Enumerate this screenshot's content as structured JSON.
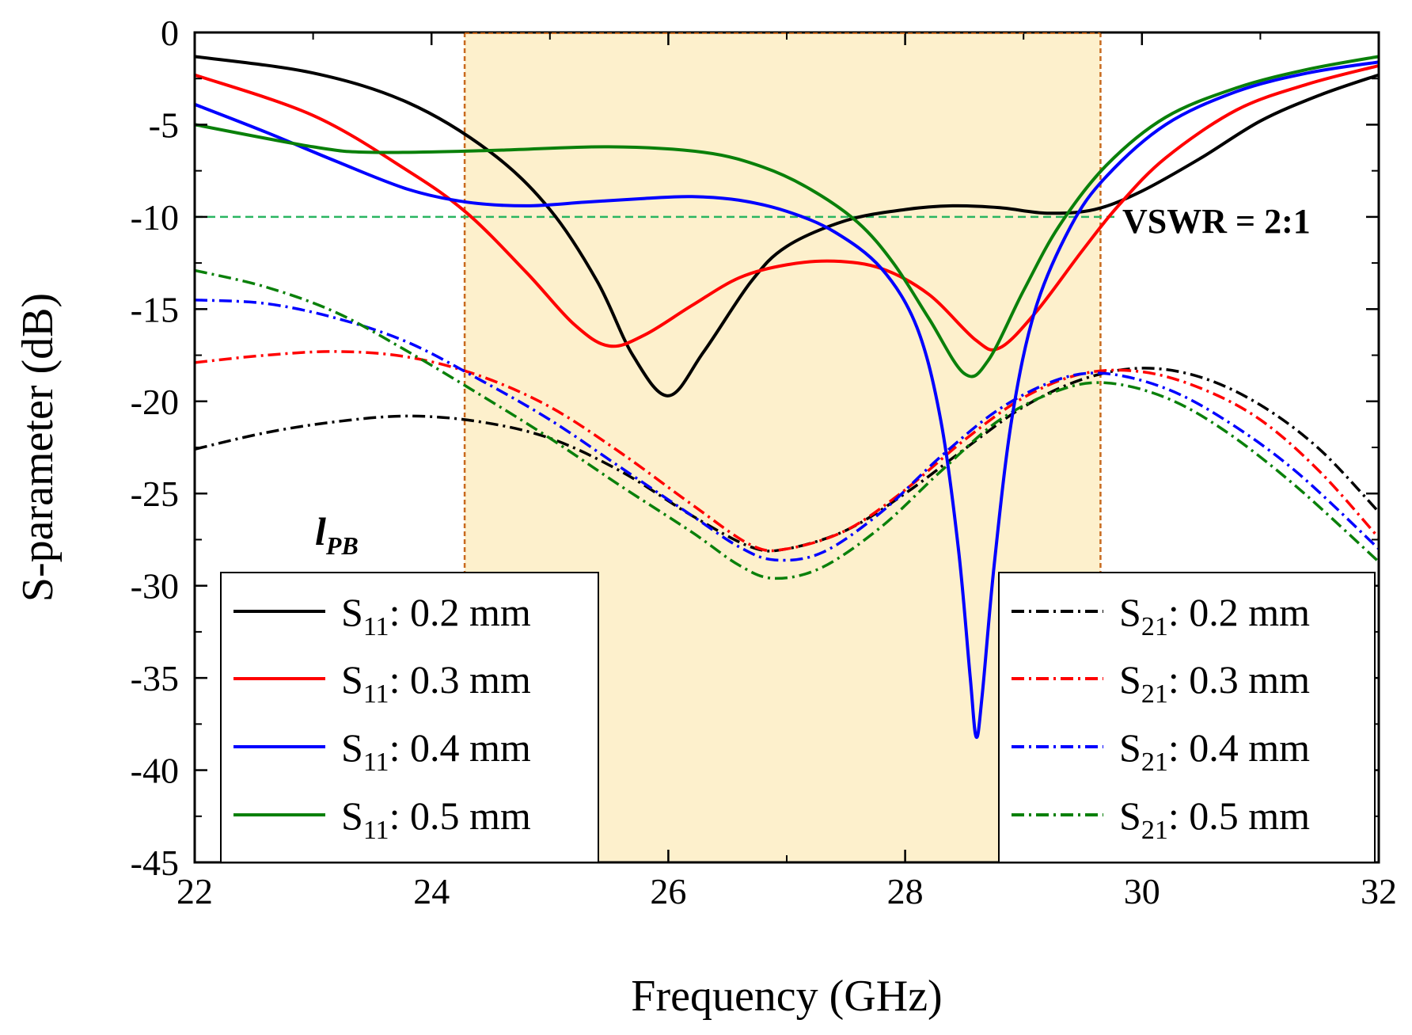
{
  "chart_data": {
    "type": "line",
    "xlabel": "Frequency (GHz)",
    "ylabel": "S-parameter (dB)",
    "xlim": [
      22,
      32
    ],
    "ylim": [
      -45,
      0
    ],
    "xticks": [
      22,
      24,
      26,
      28,
      30,
      32
    ],
    "yticks": [
      0,
      -5,
      -10,
      -15,
      -20,
      -25,
      -30,
      -35,
      -40,
      -45
    ],
    "xtick_labels": [
      "22",
      "24",
      "26",
      "28",
      "30",
      "32"
    ],
    "ytick_labels": [
      "0",
      "-5",
      "-10",
      "-15",
      "-20",
      "-25",
      "-30",
      "-35",
      "-40",
      "-45"
    ],
    "band": {
      "x_start": 24.28,
      "x_end": 29.65,
      "fill": "#fdf0cc",
      "edge": "#c8691e"
    },
    "reference_line": {
      "y": -10,
      "color": "#2ab561",
      "label": "VSWR = 2:1"
    },
    "parameter_label": {
      "main": "l",
      "sub": "PB"
    },
    "series": [
      {
        "name": "S11: 0.2 mm",
        "param": "S",
        "sub": "11",
        "suffix": ": 0.2 mm",
        "color": "#000000",
        "style": "solid",
        "points": [
          [
            22,
            -1.3
          ],
          [
            23,
            -2.2
          ],
          [
            23.8,
            -3.8
          ],
          [
            24.5,
            -6.5
          ],
          [
            25,
            -9.6
          ],
          [
            25.4,
            -13.5
          ],
          [
            25.7,
            -17.5
          ],
          [
            26,
            -19.7
          ],
          [
            26.3,
            -17.3
          ],
          [
            26.7,
            -13.5
          ],
          [
            27,
            -11.6
          ],
          [
            27.5,
            -10.2
          ],
          [
            28,
            -9.6
          ],
          [
            28.4,
            -9.4
          ],
          [
            28.8,
            -9.5
          ],
          [
            29.2,
            -9.8
          ],
          [
            29.6,
            -9.6
          ],
          [
            30,
            -8.6
          ],
          [
            30.5,
            -6.8
          ],
          [
            31,
            -4.8
          ],
          [
            31.5,
            -3.4
          ],
          [
            32,
            -2.3
          ]
        ]
      },
      {
        "name": "S11: 0.3 mm",
        "param": "S",
        "sub": "11",
        "suffix": ": 0.3 mm",
        "color": "#ff0000",
        "style": "solid",
        "points": [
          [
            22,
            -2.3
          ],
          [
            23,
            -4.5
          ],
          [
            23.8,
            -7.5
          ],
          [
            24.3,
            -9.8
          ],
          [
            24.8,
            -13
          ],
          [
            25.2,
            -15.8
          ],
          [
            25.5,
            -17
          ],
          [
            25.8,
            -16.4
          ],
          [
            26.2,
            -14.8
          ],
          [
            26.6,
            -13.3
          ],
          [
            27,
            -12.6
          ],
          [
            27.4,
            -12.4
          ],
          [
            27.8,
            -12.8
          ],
          [
            28.2,
            -14.2
          ],
          [
            28.6,
            -16.7
          ],
          [
            28.8,
            -17.1
          ],
          [
            29.1,
            -15.2
          ],
          [
            29.5,
            -11.8
          ],
          [
            29.8,
            -9.4
          ],
          [
            30.2,
            -6.8
          ],
          [
            30.8,
            -4.2
          ],
          [
            31.4,
            -2.8
          ],
          [
            32,
            -1.8
          ]
        ]
      },
      {
        "name": "S11: 0.4 mm",
        "param": "S",
        "sub": "11",
        "suffix": ": 0.4 mm",
        "color": "#0000ff",
        "style": "solid",
        "points": [
          [
            22,
            -3.9
          ],
          [
            22.6,
            -5.4
          ],
          [
            23.2,
            -7
          ],
          [
            23.8,
            -8.5
          ],
          [
            24.3,
            -9.2
          ],
          [
            24.8,
            -9.4
          ],
          [
            25.3,
            -9.2
          ],
          [
            25.8,
            -9
          ],
          [
            26.2,
            -8.9
          ],
          [
            26.6,
            -9.1
          ],
          [
            27,
            -9.7
          ],
          [
            27.4,
            -10.8
          ],
          [
            27.8,
            -12.8
          ],
          [
            28.1,
            -16
          ],
          [
            28.3,
            -21
          ],
          [
            28.45,
            -28
          ],
          [
            28.55,
            -35
          ],
          [
            28.6,
            -38.2
          ],
          [
            28.65,
            -36
          ],
          [
            28.75,
            -29
          ],
          [
            28.9,
            -21
          ],
          [
            29.1,
            -15
          ],
          [
            29.4,
            -10.5
          ],
          [
            29.7,
            -7.8
          ],
          [
            30.2,
            -5
          ],
          [
            30.8,
            -3.2
          ],
          [
            31.4,
            -2.2
          ],
          [
            32,
            -1.6
          ]
        ]
      },
      {
        "name": "S11: 0.5 mm",
        "param": "S",
        "sub": "11",
        "suffix": ": 0.5 mm",
        "color": "#0a800a",
        "style": "solid",
        "points": [
          [
            22,
            -5
          ],
          [
            23,
            -6.2
          ],
          [
            23.5,
            -6.5
          ],
          [
            24.5,
            -6.4
          ],
          [
            25.5,
            -6.2
          ],
          [
            26.3,
            -6.5
          ],
          [
            26.8,
            -7.3
          ],
          [
            27.2,
            -8.5
          ],
          [
            27.6,
            -10.3
          ],
          [
            27.9,
            -12.5
          ],
          [
            28.2,
            -15.5
          ],
          [
            28.5,
            -18.5
          ],
          [
            28.7,
            -17.8
          ],
          [
            29,
            -14
          ],
          [
            29.3,
            -10.5
          ],
          [
            29.7,
            -7.2
          ],
          [
            30.2,
            -4.6
          ],
          [
            30.8,
            -3
          ],
          [
            31.4,
            -2
          ],
          [
            32,
            -1.3
          ]
        ]
      },
      {
        "name": "S21: 0.2 mm",
        "param": "S",
        "sub": "21",
        "suffix": ": 0.2 mm",
        "color": "#000000",
        "style": "dashdot",
        "points": [
          [
            22,
            -22.6
          ],
          [
            22.6,
            -21.7
          ],
          [
            23.2,
            -21.1
          ],
          [
            23.8,
            -20.8
          ],
          [
            24.4,
            -21.1
          ],
          [
            25,
            -22
          ],
          [
            25.6,
            -23.8
          ],
          [
            26.2,
            -26.2
          ],
          [
            26.7,
            -27.9
          ],
          [
            27,
            -28
          ],
          [
            27.5,
            -27
          ],
          [
            28,
            -25
          ],
          [
            28.5,
            -22.6
          ],
          [
            29,
            -20.3
          ],
          [
            29.5,
            -18.8
          ],
          [
            30,
            -18.2
          ],
          [
            30.5,
            -18.7
          ],
          [
            31,
            -20.2
          ],
          [
            31.5,
            -22.6
          ],
          [
            32,
            -26
          ]
        ]
      },
      {
        "name": "S21: 0.3 mm",
        "param": "S",
        "sub": "21",
        "suffix": ": 0.3 mm",
        "color": "#ff0000",
        "style": "dashdot",
        "points": [
          [
            22,
            -17.9
          ],
          [
            22.6,
            -17.5
          ],
          [
            23.2,
            -17.3
          ],
          [
            23.8,
            -17.6
          ],
          [
            24.4,
            -18.6
          ],
          [
            25,
            -20.3
          ],
          [
            25.6,
            -22.8
          ],
          [
            26.2,
            -25.6
          ],
          [
            26.7,
            -27.8
          ],
          [
            27,
            -28
          ],
          [
            27.5,
            -27
          ],
          [
            28,
            -24.8
          ],
          [
            28.5,
            -22.1
          ],
          [
            29,
            -19.8
          ],
          [
            29.5,
            -18.5
          ],
          [
            30,
            -18.4
          ],
          [
            30.5,
            -19.3
          ],
          [
            31,
            -21
          ],
          [
            31.5,
            -23.8
          ],
          [
            32,
            -27.4
          ]
        ]
      },
      {
        "name": "S21: 0.4 mm",
        "param": "S",
        "sub": "21",
        "suffix": ": 0.4 mm",
        "color": "#0000ff",
        "style": "dashdot",
        "points": [
          [
            22,
            -14.5
          ],
          [
            22.6,
            -14.7
          ],
          [
            23.2,
            -15.5
          ],
          [
            23.8,
            -16.8
          ],
          [
            24.4,
            -18.8
          ],
          [
            25,
            -21
          ],
          [
            25.6,
            -23.6
          ],
          [
            26.2,
            -26.2
          ],
          [
            26.6,
            -27.9
          ],
          [
            26.9,
            -28.6
          ],
          [
            27.3,
            -28.2
          ],
          [
            27.8,
            -26
          ],
          [
            28.3,
            -23
          ],
          [
            28.8,
            -20.4
          ],
          [
            29.3,
            -18.8
          ],
          [
            29.7,
            -18.5
          ],
          [
            30.2,
            -19.3
          ],
          [
            30.7,
            -21
          ],
          [
            31.3,
            -23.8
          ],
          [
            32,
            -28
          ]
        ]
      },
      {
        "name": "S21: 0.5 mm",
        "param": "S",
        "sub": "21",
        "suffix": ": 0.5 mm",
        "color": "#0a800a",
        "style": "dashdot",
        "points": [
          [
            22,
            -12.9
          ],
          [
            22.6,
            -13.8
          ],
          [
            23.2,
            -15.2
          ],
          [
            23.8,
            -17.3
          ],
          [
            24.4,
            -19.6
          ],
          [
            25,
            -22
          ],
          [
            25.6,
            -24.6
          ],
          [
            26.2,
            -27.1
          ],
          [
            26.6,
            -28.9
          ],
          [
            26.9,
            -29.6
          ],
          [
            27.3,
            -29
          ],
          [
            27.8,
            -26.8
          ],
          [
            28.3,
            -23.8
          ],
          [
            28.8,
            -21
          ],
          [
            29.3,
            -19.4
          ],
          [
            29.7,
            -19
          ],
          [
            30.2,
            -19.8
          ],
          [
            30.7,
            -21.6
          ],
          [
            31.3,
            -24.6
          ],
          [
            32,
            -28.7
          ]
        ]
      }
    ]
  }
}
